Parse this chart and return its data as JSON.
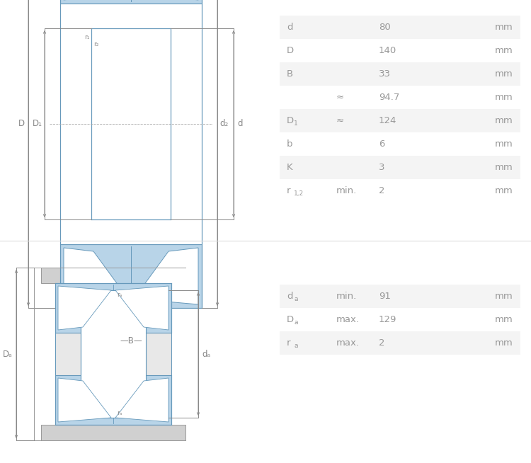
{
  "bg_color": "#ffffff",
  "table1_rows": [
    {
      "label": "d",
      "label_sub": "",
      "qualifier": "",
      "value": "80",
      "unit": "mm",
      "shaded": true
    },
    {
      "label": "D",
      "label_sub": "",
      "qualifier": "",
      "value": "140",
      "unit": "mm",
      "shaded": false
    },
    {
      "label": "B",
      "label_sub": "",
      "qualifier": "",
      "value": "33",
      "unit": "mm",
      "shaded": true
    },
    {
      "label": "",
      "label_sub": "",
      "qualifier": "≈",
      "value": "94.7",
      "unit": "mm",
      "shaded": false
    },
    {
      "label": "D",
      "label_sub": "1",
      "qualifier": "≈",
      "value": "124",
      "unit": "mm",
      "shaded": true
    },
    {
      "label": "b",
      "label_sub": "",
      "qualifier": "",
      "value": "6",
      "unit": "mm",
      "shaded": false
    },
    {
      "label": "K",
      "label_sub": "",
      "qualifier": "",
      "value": "3",
      "unit": "mm",
      "shaded": true
    },
    {
      "label": "r",
      "label_sub": "1,2",
      "qualifier": "min.",
      "value": "2",
      "unit": "mm",
      "shaded": false
    }
  ],
  "table2_rows": [
    {
      "label": "d",
      "label_sub": "a",
      "qualifier": "min.",
      "value": "91",
      "unit": "mm",
      "shaded": true
    },
    {
      "label": "D",
      "label_sub": "a",
      "qualifier": "max.",
      "value": "129",
      "unit": "mm",
      "shaded": false
    },
    {
      "label": "r",
      "label_sub": "a",
      "qualifier": "max.",
      "value": "2",
      "unit": "mm",
      "shaded": true
    }
  ],
  "text_color": "#999999",
  "shaded_color": "#f4f4f4",
  "dim_color": "#888888",
  "bearing_blue": "#b8d4e8",
  "bearing_line": "#6699bb",
  "bearing_gray": "#cccccc",
  "housing_color": "#d0d0d0"
}
